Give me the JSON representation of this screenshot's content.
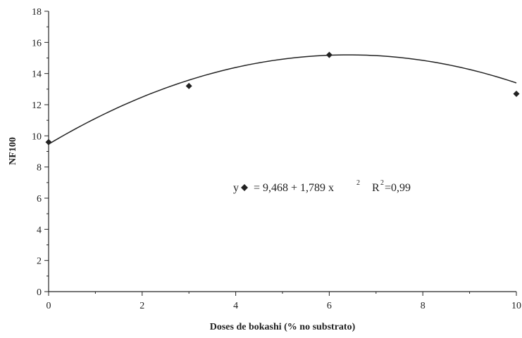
{
  "chart_data": {
    "type": "scatter",
    "xlabel": "Doses de bokashi (% no substrato)",
    "ylabel": "NF100",
    "xlim": [
      0,
      10
    ],
    "ylim": [
      0,
      18
    ],
    "x_ticks": [
      0,
      2,
      4,
      6,
      8,
      10
    ],
    "y_ticks": [
      0,
      2,
      4,
      6,
      8,
      10,
      12,
      14,
      16,
      18
    ],
    "grid": false,
    "series": [
      {
        "points": [
          {
            "x": 0,
            "y": 9.6
          },
          {
            "x": 3,
            "y": 13.2
          },
          {
            "x": 6,
            "y": 15.2
          },
          {
            "x": 10,
            "y": 12.7
          }
        ],
        "marker": "diamond",
        "color": "#222222"
      }
    ],
    "trendline": {
      "type": "quadratic",
      "equation_prefix": "y",
      "equation_body": "= 9,468 + 1,789 x",
      "equation_exp": "2",
      "r2_prefix": "R",
      "r2_exp": "2",
      "r2_value": "=0,99",
      "coefficients": {
        "a": 9.468,
        "b": 1.789,
        "c": -0.1396
      },
      "color": "#222222"
    }
  }
}
